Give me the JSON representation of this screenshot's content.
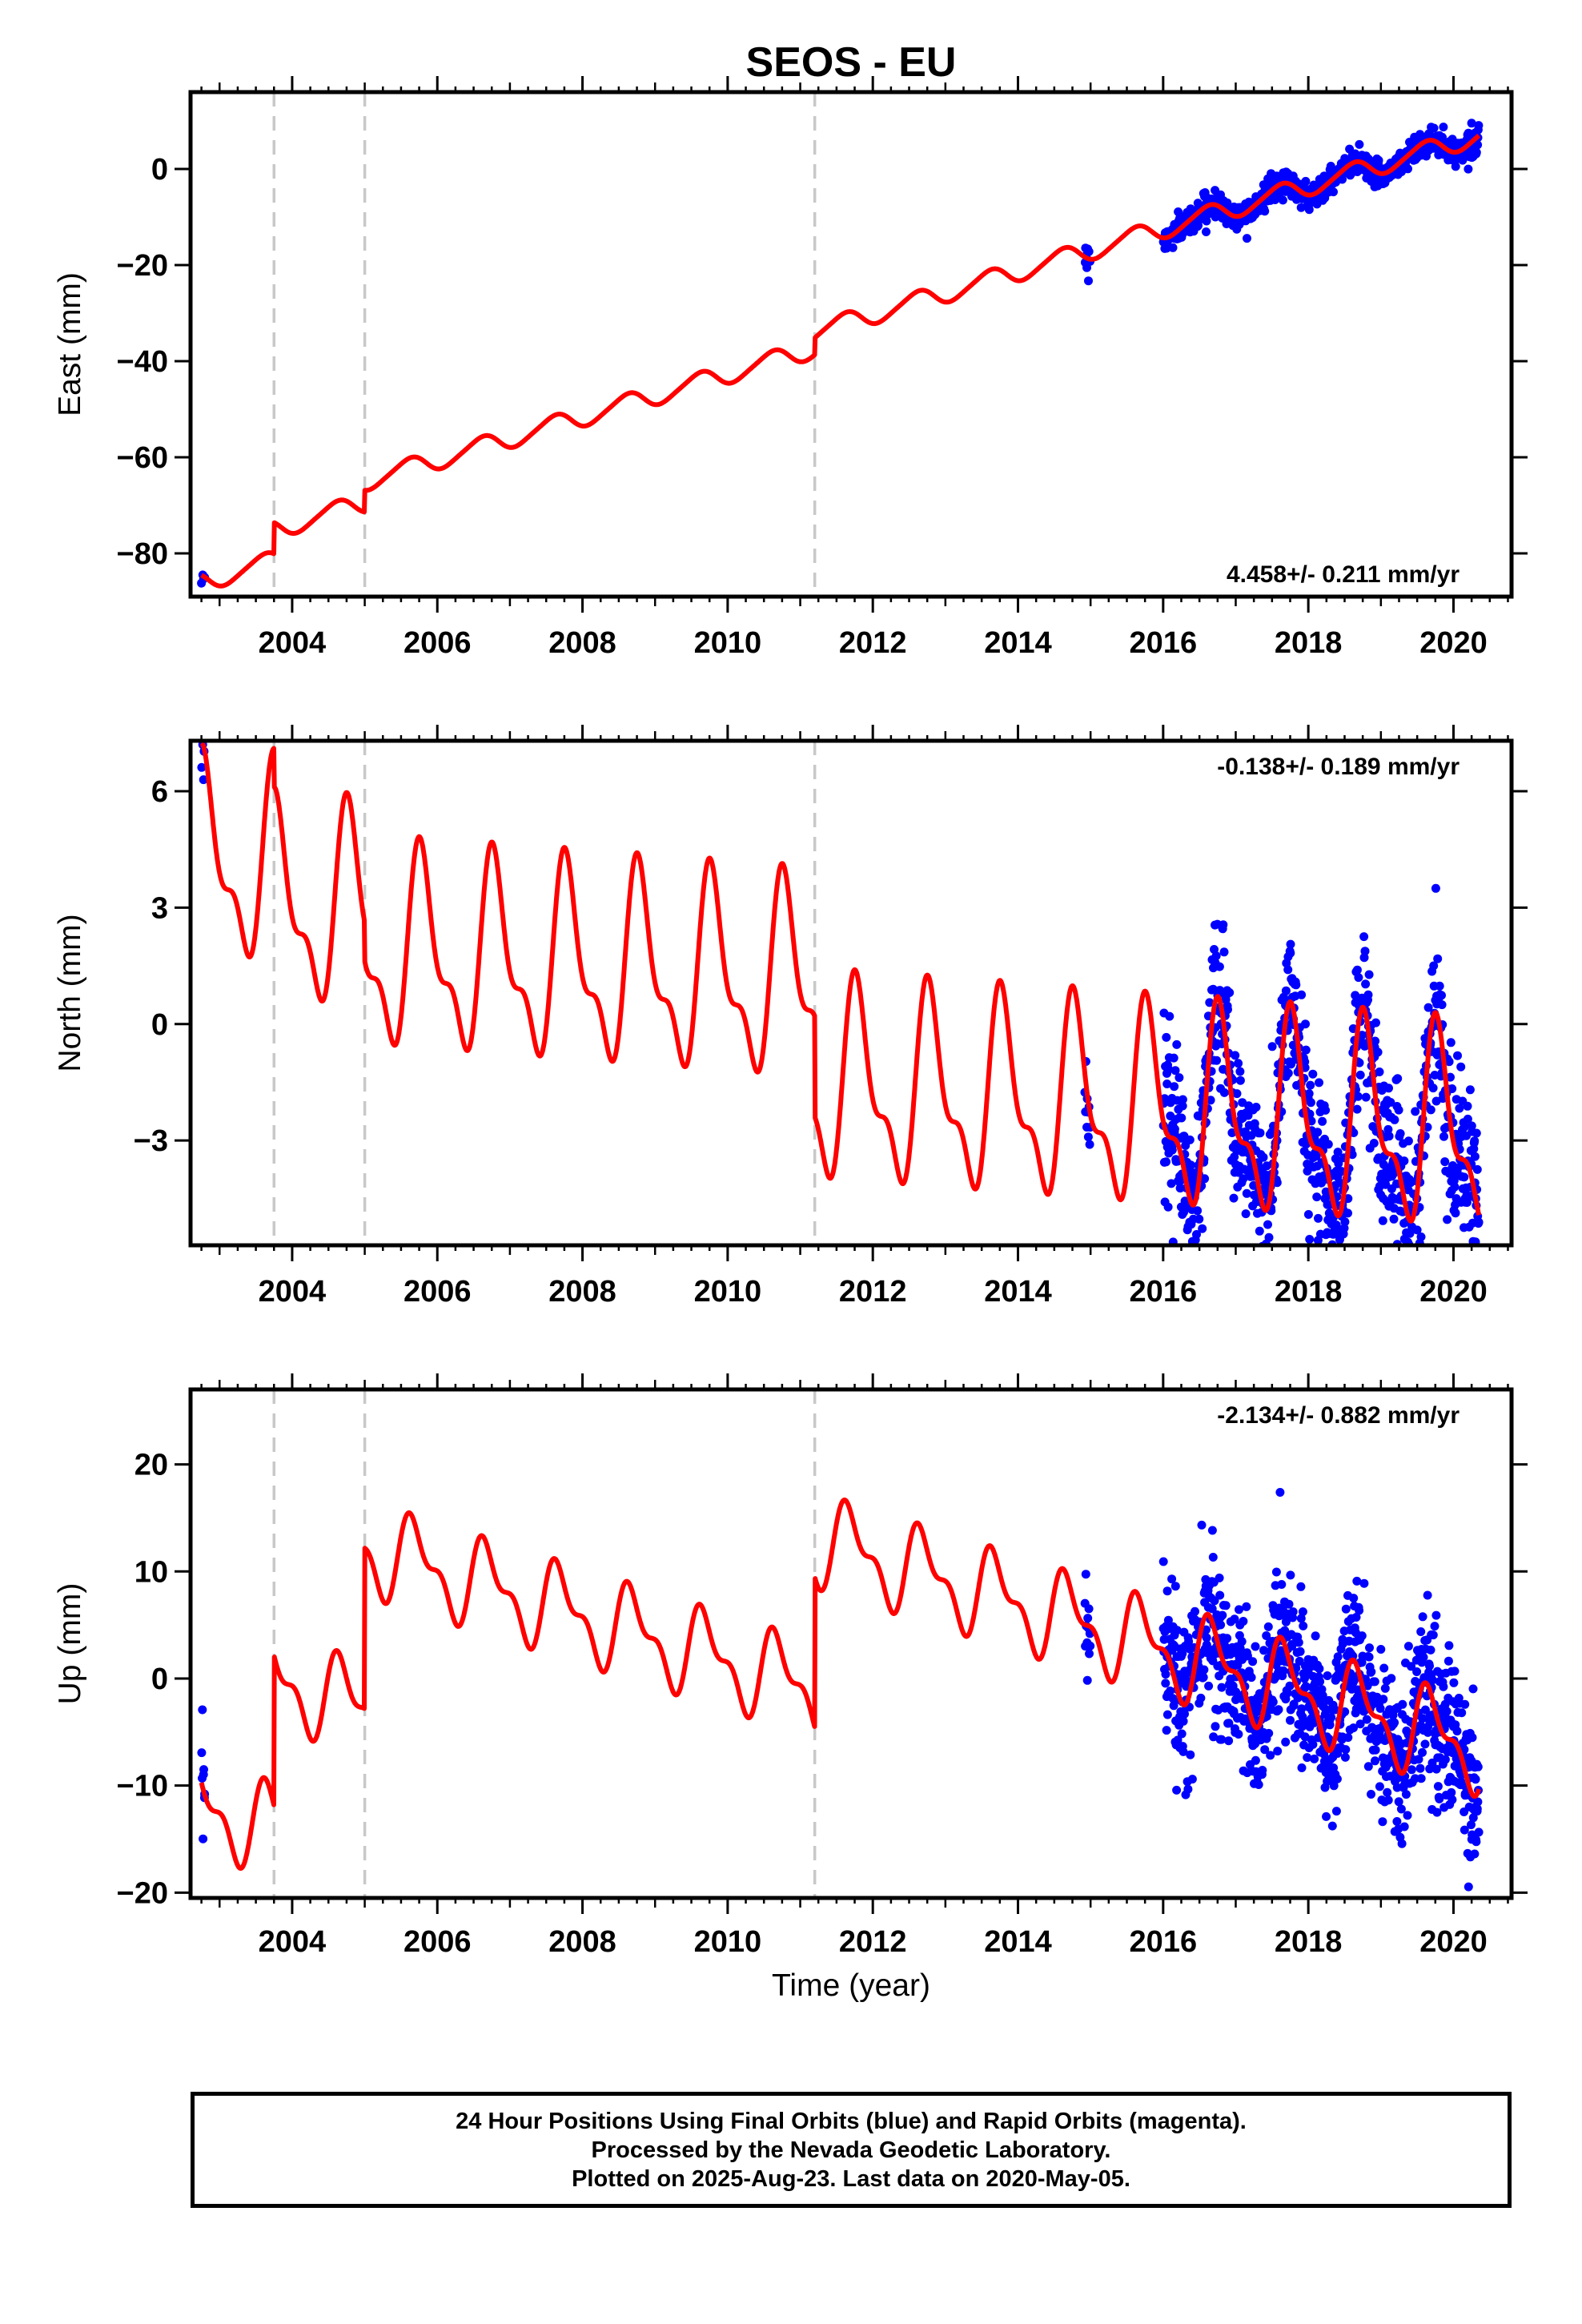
{
  "title": "SEOS - EU",
  "xlabel": "Time (year)",
  "footer": {
    "line1": "24 Hour Positions Using Final Orbits (blue) and Rapid Orbits (magenta).",
    "line2": "Processed by the Nevada Geodetic Laboratory.",
    "line3": "Plotted on 2025-Aug-23. Last data on 2020-May-05."
  },
  "colors": {
    "data_points": "#0000ff",
    "model_line": "#ff0000",
    "offset_lines": "#c8c8c8",
    "frame": "#000000"
  },
  "chart_data": [
    {
      "type": "scatter",
      "component": "East",
      "ylabel": "East (mm)",
      "rate_label": "4.458+/- 0.211 mm/yr",
      "rate_position": "bottom-right",
      "xlim": [
        2002.6,
        2020.8
      ],
      "ylim": [
        -89,
        16
      ],
      "yticks": [
        0,
        -20,
        -40,
        -60,
        -80
      ],
      "ytick_labels": [
        "0",
        "-20",
        "-40",
        "-60",
        "-80"
      ],
      "xticks": [
        2004,
        2006,
        2008,
        2010,
        2012,
        2014,
        2016,
        2018,
        2020
      ],
      "xtick_labels": [
        "2004",
        "2006",
        "2008",
        "2010",
        "2012",
        "2014",
        "2016",
        "2018",
        "2020"
      ],
      "offsets": [
        2003.75,
        2005.0,
        2011.2
      ],
      "model": {
        "start": 2002.75,
        "end": 2020.35,
        "ref": 2002.75,
        "base": -86,
        "rate": 4.458,
        "steps": [
          [
            2003.75,
            6.5
          ],
          [
            2005.0,
            4.5
          ],
          [
            2011.2,
            3.5
          ]
        ],
        "annual_amp": 2.0,
        "annual_phase": 2003.35,
        "semiannual_amp": 0.3,
        "semiannual_phase": 2003.1
      },
      "observation_windows": [
        {
          "start": 2002.75,
          "end": 2002.8,
          "count": 4,
          "scatter": 0.6
        },
        {
          "start": 2014.92,
          "end": 2015.0,
          "count": 10,
          "scatter": 1.5
        },
        {
          "start": 2016.0,
          "end": 2020.35,
          "count": 850,
          "scatter": 1.3
        }
      ]
    },
    {
      "type": "scatter",
      "component": "North",
      "ylabel": "North (mm)",
      "rate_label": "-0.138+/- 0.189 mm/yr",
      "rate_position": "top-right",
      "xlim": [
        2002.6,
        2020.8
      ],
      "ylim": [
        -5.7,
        7.3
      ],
      "yticks": [
        6,
        3,
        0,
        -3
      ],
      "ytick_labels": [
        "6",
        "3",
        "0",
        "-3"
      ],
      "xticks": [
        2004,
        2006,
        2008,
        2010,
        2012,
        2014,
        2016,
        2018,
        2020
      ],
      "xtick_labels": [
        "2004",
        "2006",
        "2008",
        "2010",
        "2012",
        "2014",
        "2016",
        "2018",
        "2020"
      ],
      "offsets": [
        2003.75,
        2005.0,
        2011.2
      ],
      "model": {
        "start": 2002.75,
        "end": 2020.35,
        "ref": 2002.75,
        "base": 4.2,
        "rate": -0.138,
        "steps": [
          [
            2003.75,
            -1.0
          ],
          [
            2005.0,
            -1.0
          ],
          [
            2011.2,
            -2.6
          ]
        ],
        "annual_amp": 2.2,
        "annual_phase": 2003.55,
        "semiannual_amp": 1.0,
        "semiannual_phase": 2003.6
      },
      "observation_windows": [
        {
          "start": 2002.75,
          "end": 2002.8,
          "count": 6,
          "scatter": 1.0
        },
        {
          "start": 2014.92,
          "end": 2015.0,
          "count": 10,
          "scatter": 0.5
        },
        {
          "start": 2016.0,
          "end": 2020.35,
          "count": 900,
          "scatter": 1.0
        }
      ]
    },
    {
      "type": "scatter",
      "component": "Up",
      "ylabel": "Up (mm)",
      "rate_label": "-2.134+/- 0.882 mm/yr",
      "rate_position": "top-right",
      "xlim": [
        2002.6,
        2020.8
      ],
      "ylim": [
        -20.5,
        27
      ],
      "yticks": [
        20,
        10,
        0,
        -10,
        -20
      ],
      "ytick_labels": [
        "20",
        "10",
        "0",
        "-10",
        "-20"
      ],
      "xticks": [
        2004,
        2006,
        2008,
        2010,
        2012,
        2014,
        2016,
        2018,
        2020
      ],
      "xtick_labels": [
        "2004",
        "2006",
        "2008",
        "2010",
        "2012",
        "2014",
        "2016",
        "2018",
        "2020"
      ],
      "offsets": [
        2003.75,
        2005.0,
        2011.2
      ],
      "model": {
        "start": 2002.75,
        "end": 2020.35,
        "ref": 2002.75,
        "base": -12,
        "rate": -2.134,
        "steps": [
          [
            2003.75,
            14.0
          ],
          [
            2005.0,
            15.0
          ],
          [
            2011.2,
            14.0
          ]
        ],
        "annual_amp": 3.5,
        "annual_phase": 2003.45,
        "semiannual_amp": 1.8,
        "semiannual_phase": 2003.45
      },
      "observation_windows": [
        {
          "start": 2002.75,
          "end": 2002.8,
          "count": 8,
          "scatter": 3.0
        },
        {
          "start": 2014.92,
          "end": 2015.0,
          "count": 12,
          "scatter": 4.0
        },
        {
          "start": 2016.0,
          "end": 2020.35,
          "count": 1000,
          "scatter": 3.6
        }
      ]
    }
  ]
}
